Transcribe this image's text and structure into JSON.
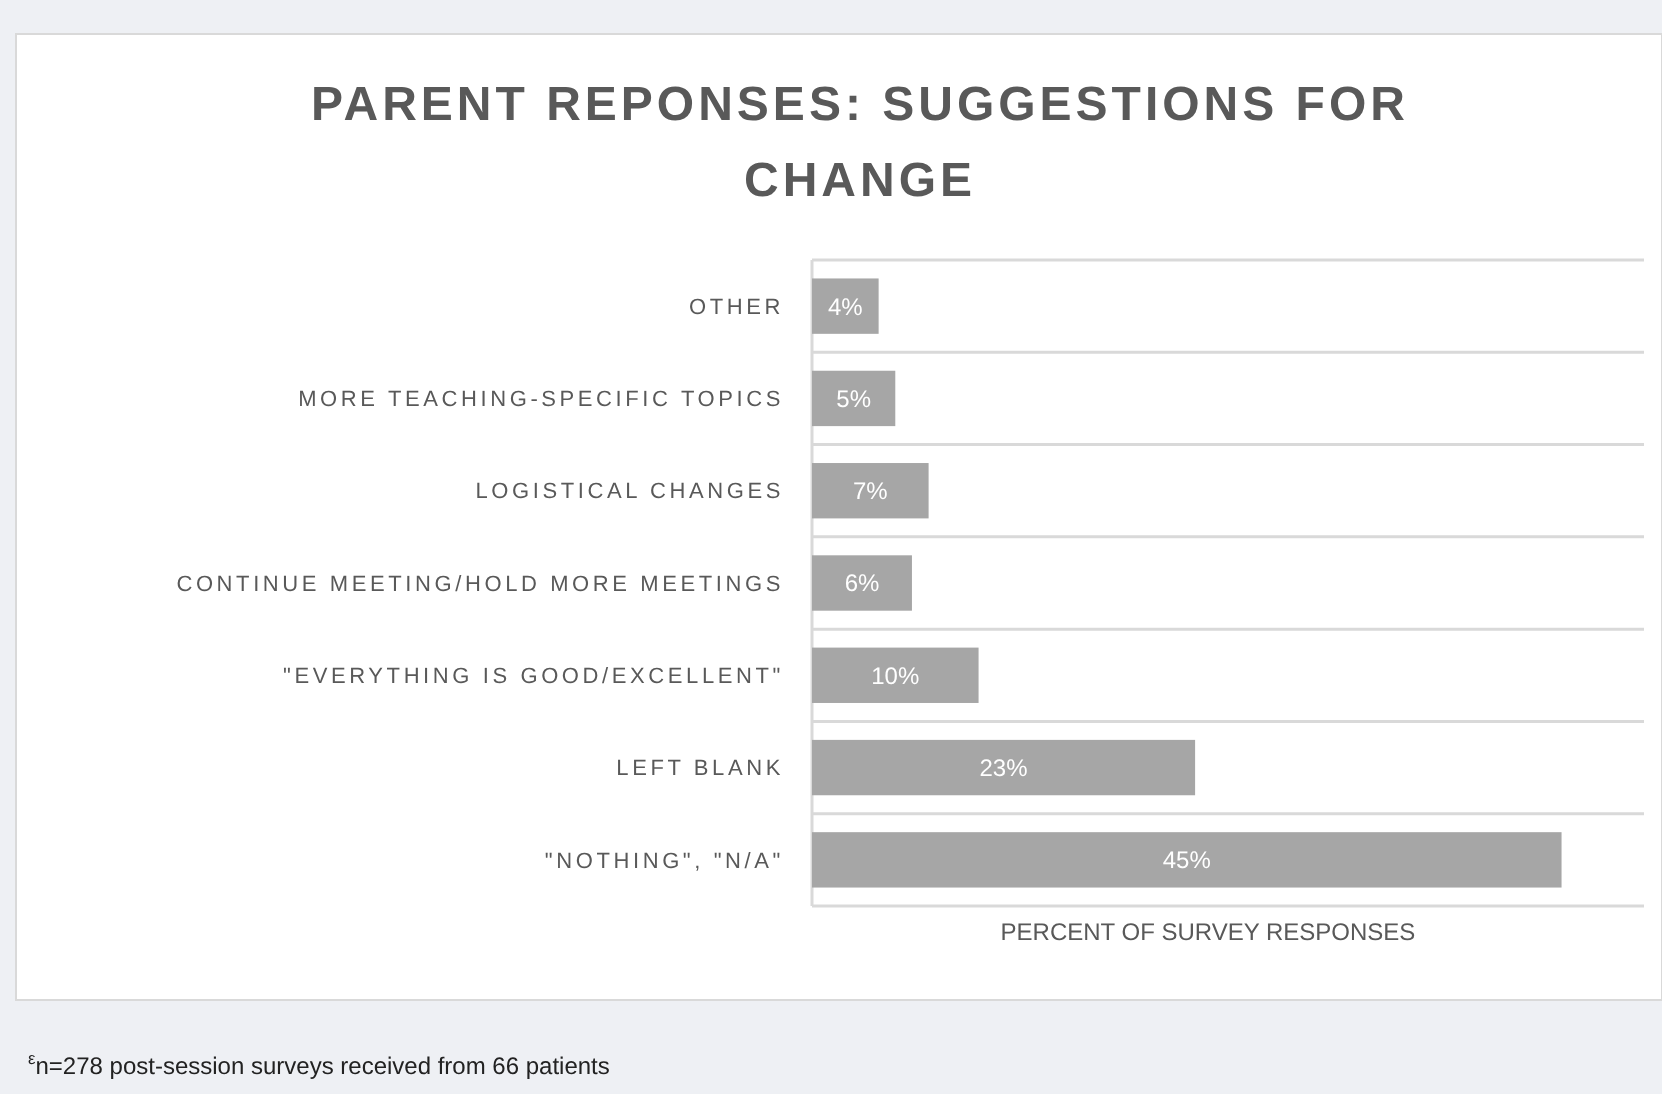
{
  "chart_data": {
    "type": "bar",
    "orientation": "horizontal",
    "title": "PARENT REPONSES: SUGGESTIONS FOR CHANGE",
    "categories": [
      "OTHER",
      "MORE TEACHING-SPECIFIC TOPICS",
      "LOGISTICAL CHANGES",
      "CONTINUE MEETING/HOLD MORE MEETINGS",
      "\"EVERYTHING IS GOOD/EXCELLENT\"",
      "LEFT BLANK",
      "\"NOTHING\", \"N/A\""
    ],
    "values": [
      4,
      5,
      7,
      6,
      10,
      23,
      45
    ],
    "value_labels": [
      "4%",
      "5%",
      "7%",
      "6%",
      "10%",
      "23%",
      "45%"
    ],
    "color": "#a6a6a6",
    "xlabel": "PERCENT OF SURVEY RESPONSES",
    "grid": "y",
    "annotations": [
      "$^{ε}$n=278 post-session surveys received from 66 patients"
    ]
  }
}
